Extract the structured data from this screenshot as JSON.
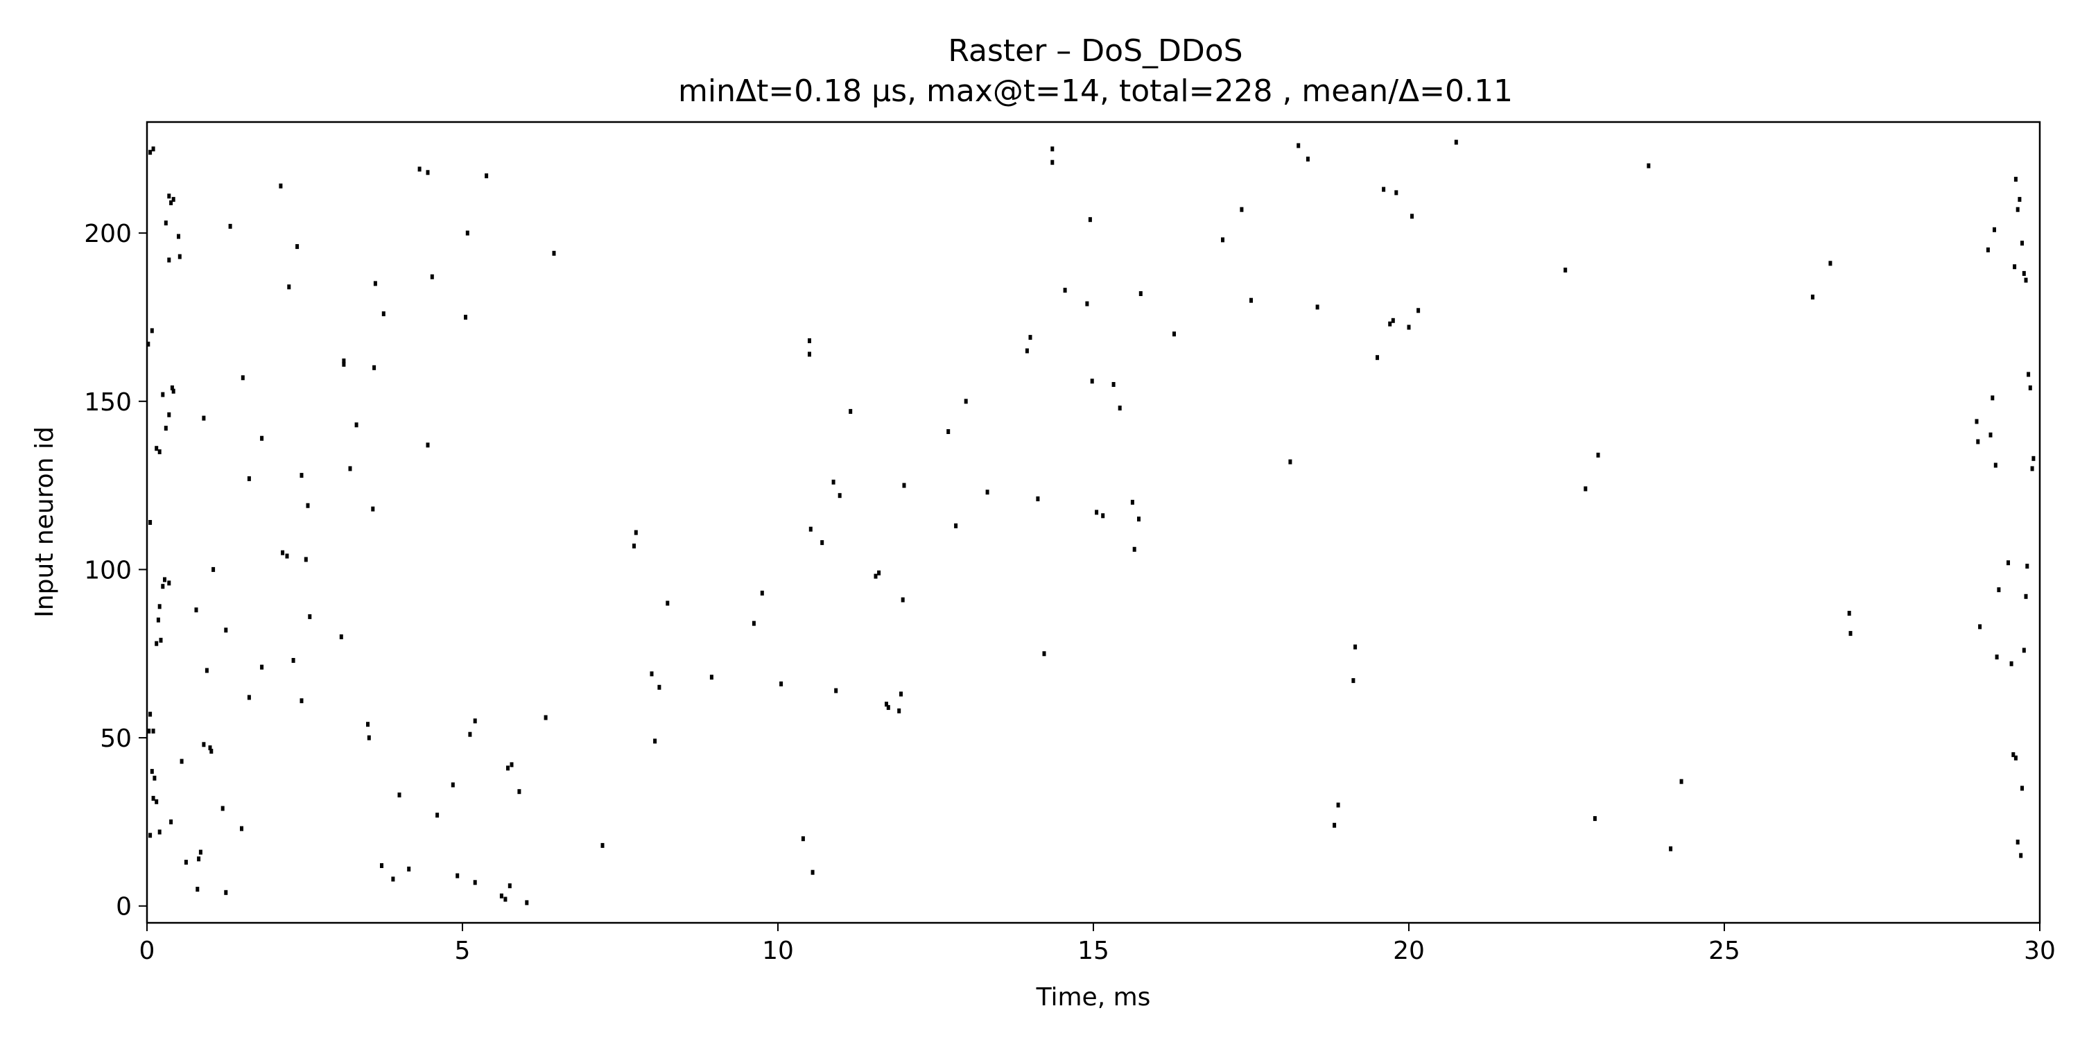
{
  "chart_data": {
    "type": "scatter",
    "title": "Raster – DoS_DDoS",
    "subtitle": "minΔt=0.18 μs, max@t=14, total=228 , mean/Δ=0.11",
    "xlabel": "Time, ms",
    "ylabel": "Input neuron id",
    "xlim": [
      0,
      30
    ],
    "ylim": [
      -5,
      233
    ],
    "xticks": [
      0,
      5,
      10,
      15,
      20,
      25,
      30
    ],
    "yticks": [
      0,
      50,
      100,
      150,
      200
    ],
    "grid": false,
    "marker_color": "#000000",
    "series": [
      {
        "points": [
          [
            0.05,
            224
          ],
          [
            0.1,
            225
          ],
          [
            0.02,
            167
          ],
          [
            0.08,
            171
          ],
          [
            0.05,
            114
          ],
          [
            0.05,
            57
          ],
          [
            0.03,
            52
          ],
          [
            0.1,
            52
          ],
          [
            0.08,
            40
          ],
          [
            0.12,
            38
          ],
          [
            0.1,
            32
          ],
          [
            0.15,
            31
          ],
          [
            0.05,
            21
          ],
          [
            0.2,
            22
          ],
          [
            0.15,
            78
          ],
          [
            0.22,
            79
          ],
          [
            0.18,
            85
          ],
          [
            0.2,
            89
          ],
          [
            0.25,
            95
          ],
          [
            0.28,
            97
          ],
          [
            0.35,
            96
          ],
          [
            0.15,
            136
          ],
          [
            0.2,
            135
          ],
          [
            0.25,
            152
          ],
          [
            0.3,
            142
          ],
          [
            0.35,
            146
          ],
          [
            0.4,
            154
          ],
          [
            0.42,
            153
          ],
          [
            0.3,
            203
          ],
          [
            0.35,
            211
          ],
          [
            0.38,
            209
          ],
          [
            0.42,
            210
          ],
          [
            0.35,
            192
          ],
          [
            0.5,
            199
          ],
          [
            0.52,
            193
          ],
          [
            0.38,
            25
          ],
          [
            0.55,
            43
          ],
          [
            0.62,
            13
          ],
          [
            0.78,
            88
          ],
          [
            0.8,
            5
          ],
          [
            0.82,
            14
          ],
          [
            0.85,
            16
          ],
          [
            0.9,
            48
          ],
          [
            0.95,
            70
          ],
          [
            0.9,
            145
          ],
          [
            1.0,
            47
          ],
          [
            1.02,
            46
          ],
          [
            1.05,
            100
          ],
          [
            1.2,
            29
          ],
          [
            1.25,
            82
          ],
          [
            1.25,
            4
          ],
          [
            1.32,
            202
          ],
          [
            1.5,
            23
          ],
          [
            1.52,
            157
          ],
          [
            1.62,
            127
          ],
          [
            1.62,
            62
          ],
          [
            1.82,
            139
          ],
          [
            1.82,
            71
          ],
          [
            2.12,
            214
          ],
          [
            2.15,
            105
          ],
          [
            2.22,
            104
          ],
          [
            2.25,
            184
          ],
          [
            2.32,
            73
          ],
          [
            2.38,
            196
          ],
          [
            2.45,
            61
          ],
          [
            2.45,
            128
          ],
          [
            2.52,
            103
          ],
          [
            2.55,
            119
          ],
          [
            2.58,
            86
          ],
          [
            3.08,
            80
          ],
          [
            3.12,
            162
          ],
          [
            3.12,
            161
          ],
          [
            3.22,
            130
          ],
          [
            3.32,
            143
          ],
          [
            3.5,
            54
          ],
          [
            3.52,
            50
          ],
          [
            3.58,
            118
          ],
          [
            3.6,
            160
          ],
          [
            3.62,
            185
          ],
          [
            3.72,
            12
          ],
          [
            3.75,
            176
          ],
          [
            3.9,
            8
          ],
          [
            4.0,
            33
          ],
          [
            4.15,
            11
          ],
          [
            4.32,
            219
          ],
          [
            4.45,
            218
          ],
          [
            4.45,
            137
          ],
          [
            4.52,
            187
          ],
          [
            4.6,
            27
          ],
          [
            4.85,
            36
          ],
          [
            4.92,
            9
          ],
          [
            5.05,
            175
          ],
          [
            5.08,
            200
          ],
          [
            5.12,
            51
          ],
          [
            5.2,
            55
          ],
          [
            5.2,
            7
          ],
          [
            5.38,
            217
          ],
          [
            5.62,
            3
          ],
          [
            5.68,
            2
          ],
          [
            5.72,
            41
          ],
          [
            5.75,
            6
          ],
          [
            5.78,
            42
          ],
          [
            5.9,
            34
          ],
          [
            6.02,
            1
          ],
          [
            6.32,
            56
          ],
          [
            6.45,
            194
          ],
          [
            7.22,
            18
          ],
          [
            7.72,
            107
          ],
          [
            7.75,
            111
          ],
          [
            8.0,
            69
          ],
          [
            8.05,
            49
          ],
          [
            8.12,
            65
          ],
          [
            8.25,
            90
          ],
          [
            8.95,
            68
          ],
          [
            9.62,
            84
          ],
          [
            9.75,
            93
          ],
          [
            10.05,
            66
          ],
          [
            10.4,
            20
          ],
          [
            10.5,
            168
          ],
          [
            10.5,
            164
          ],
          [
            10.52,
            112
          ],
          [
            10.55,
            10
          ],
          [
            10.7,
            108
          ],
          [
            10.88,
            126
          ],
          [
            10.92,
            64
          ],
          [
            10.98,
            122
          ],
          [
            11.15,
            147
          ],
          [
            11.55,
            98
          ],
          [
            11.6,
            99
          ],
          [
            11.72,
            60
          ],
          [
            11.75,
            59
          ],
          [
            11.92,
            58
          ],
          [
            11.95,
            63
          ],
          [
            11.98,
            91
          ],
          [
            12.0,
            125
          ],
          [
            12.7,
            141
          ],
          [
            12.82,
            113
          ],
          [
            12.98,
            150
          ],
          [
            13.32,
            123
          ],
          [
            13.95,
            165
          ],
          [
            14.0,
            169
          ],
          [
            14.12,
            121
          ],
          [
            14.22,
            75
          ],
          [
            14.35,
            225
          ],
          [
            14.35,
            221
          ],
          [
            14.55,
            183
          ],
          [
            14.9,
            179
          ],
          [
            14.95,
            204
          ],
          [
            14.98,
            156
          ],
          [
            15.05,
            117
          ],
          [
            15.15,
            116
          ],
          [
            15.32,
            155
          ],
          [
            15.42,
            148
          ],
          [
            15.62,
            120
          ],
          [
            15.65,
            106
          ],
          [
            15.72,
            115
          ],
          [
            15.75,
            182
          ],
          [
            16.28,
            170
          ],
          [
            17.05,
            198
          ],
          [
            17.35,
            207
          ],
          [
            17.5,
            180
          ],
          [
            18.12,
            132
          ],
          [
            18.25,
            226
          ],
          [
            18.4,
            222
          ],
          [
            18.55,
            178
          ],
          [
            18.82,
            24
          ],
          [
            18.88,
            30
          ],
          [
            19.12,
            67
          ],
          [
            19.15,
            77
          ],
          [
            19.5,
            163
          ],
          [
            19.6,
            213
          ],
          [
            19.7,
            173
          ],
          [
            19.75,
            174
          ],
          [
            19.8,
            212
          ],
          [
            20.0,
            172
          ],
          [
            20.05,
            205
          ],
          [
            20.15,
            177
          ],
          [
            20.75,
            227
          ],
          [
            22.48,
            189
          ],
          [
            22.8,
            124
          ],
          [
            22.95,
            26
          ],
          [
            23.0,
            134
          ],
          [
            23.8,
            220
          ],
          [
            24.15,
            17
          ],
          [
            24.32,
            37
          ],
          [
            26.4,
            181
          ],
          [
            26.68,
            191
          ],
          [
            26.98,
            87
          ],
          [
            27.0,
            81
          ],
          [
            29.0,
            144
          ],
          [
            29.02,
            138
          ],
          [
            29.05,
            83
          ],
          [
            29.18,
            195
          ],
          [
            29.22,
            140
          ],
          [
            29.25,
            151
          ],
          [
            29.28,
            201
          ],
          [
            29.3,
            131
          ],
          [
            29.32,
            74
          ],
          [
            29.35,
            94
          ],
          [
            29.5,
            102
          ],
          [
            29.55,
            72
          ],
          [
            29.58,
            45
          ],
          [
            29.6,
            190
          ],
          [
            29.62,
            216
          ],
          [
            29.65,
            207
          ],
          [
            29.68,
            210
          ],
          [
            29.72,
            197
          ],
          [
            29.75,
            188
          ],
          [
            29.78,
            186
          ],
          [
            29.62,
            44
          ],
          [
            29.65,
            19
          ],
          [
            29.7,
            15
          ],
          [
            29.72,
            35
          ],
          [
            29.75,
            76
          ],
          [
            29.78,
            92
          ],
          [
            29.8,
            101
          ],
          [
            29.82,
            158
          ],
          [
            29.85,
            154
          ],
          [
            29.88,
            130
          ],
          [
            29.9,
            133
          ]
        ]
      }
    ]
  }
}
